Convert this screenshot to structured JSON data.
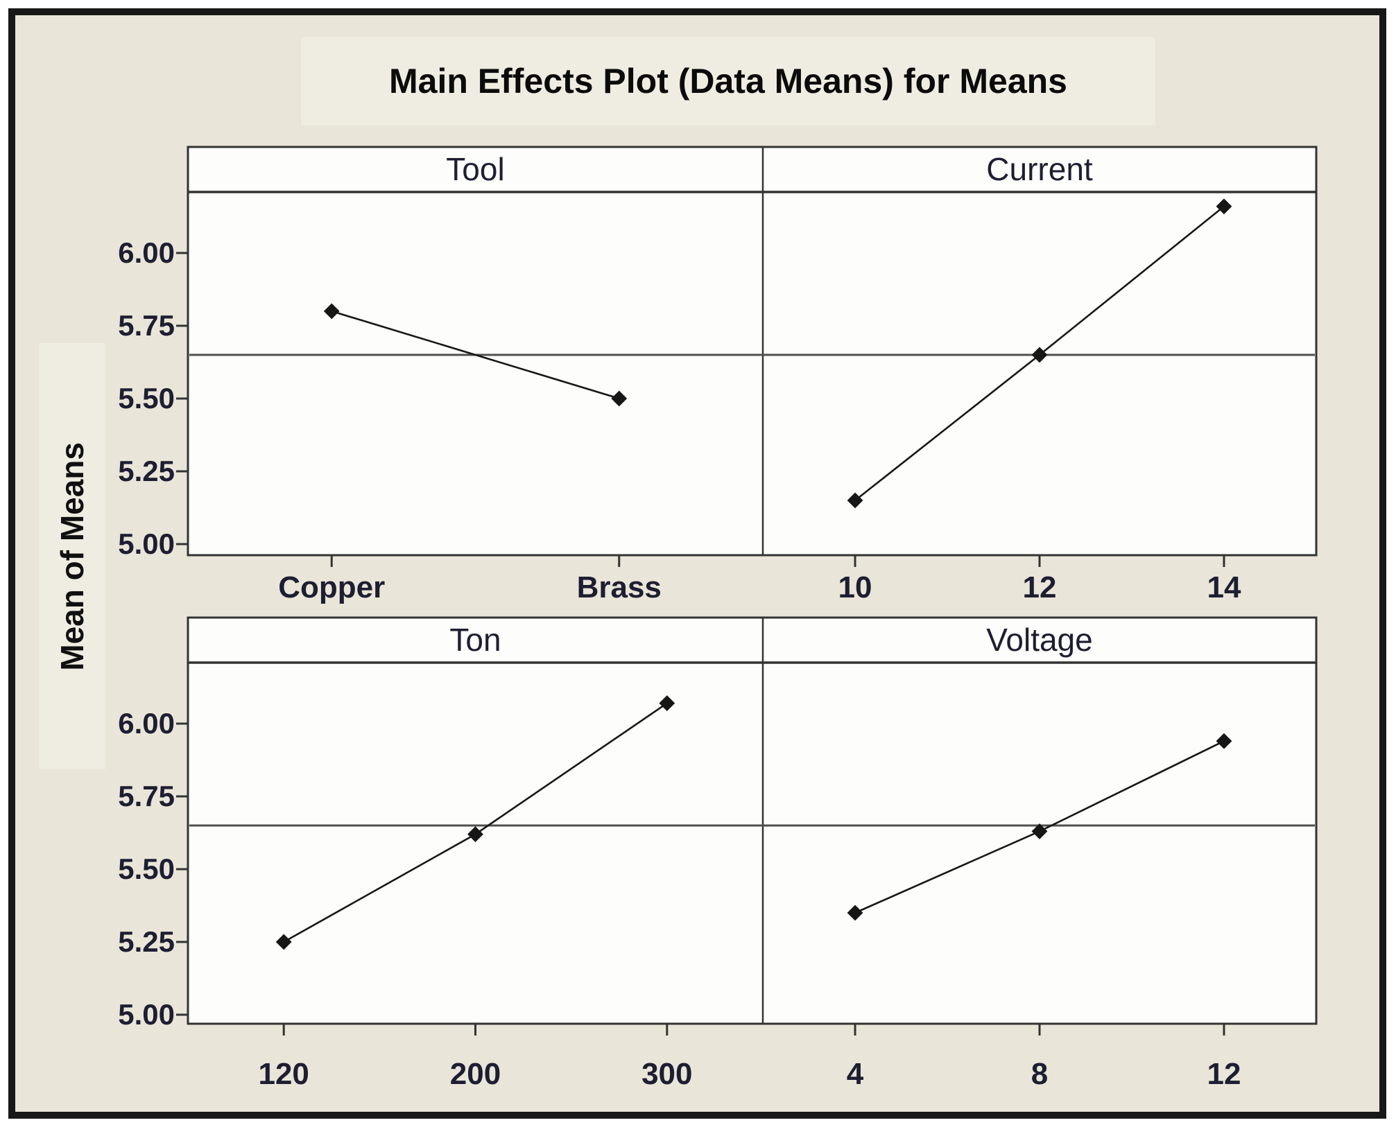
{
  "title": "Main Effects Plot (Data Means) for Means",
  "colors": {
    "background": "#e9e5d8",
    "highlight_band": "#efece1",
    "plot_background": "#fdfdfb",
    "frame": "#333333",
    "reference_line": "#4f4f4f",
    "series_line": "#161616",
    "tick_text": "#1e1e32",
    "title_text": "#0b0b0b",
    "outer_border": "#181818"
  },
  "chart_data": {
    "type": "line",
    "title": "Main Effects Plot (Data Means) for Means",
    "ylabel": "Mean of Means",
    "ylim": [
      4.96,
      6.21
    ],
    "grid": false,
    "legend": "none",
    "reference_line": 5.65,
    "y_ticks": [
      {
        "label": "6.00",
        "value": 6.0
      },
      {
        "label": "5.75",
        "value": 5.75
      },
      {
        "label": "5.50",
        "value": 5.5
      },
      {
        "label": "5.25",
        "value": 5.25
      },
      {
        "label": "5.00",
        "value": 5.0
      }
    ],
    "panels": [
      {
        "title": "Tool",
        "row": 0,
        "col": 0,
        "categories": [
          "Copper",
          "Brass"
        ],
        "values": [
          5.8,
          5.5
        ]
      },
      {
        "title": "Current",
        "row": 0,
        "col": 1,
        "categories": [
          "10",
          "12",
          "14"
        ],
        "values": [
          5.15,
          5.65,
          6.16
        ]
      },
      {
        "title": "Ton",
        "row": 1,
        "col": 0,
        "categories": [
          "120",
          "200",
          "300"
        ],
        "values": [
          5.25,
          5.62,
          6.07
        ]
      },
      {
        "title": "Voltage",
        "row": 1,
        "col": 1,
        "categories": [
          "4",
          "8",
          "12"
        ],
        "values": [
          5.35,
          5.63,
          5.94
        ]
      }
    ]
  }
}
